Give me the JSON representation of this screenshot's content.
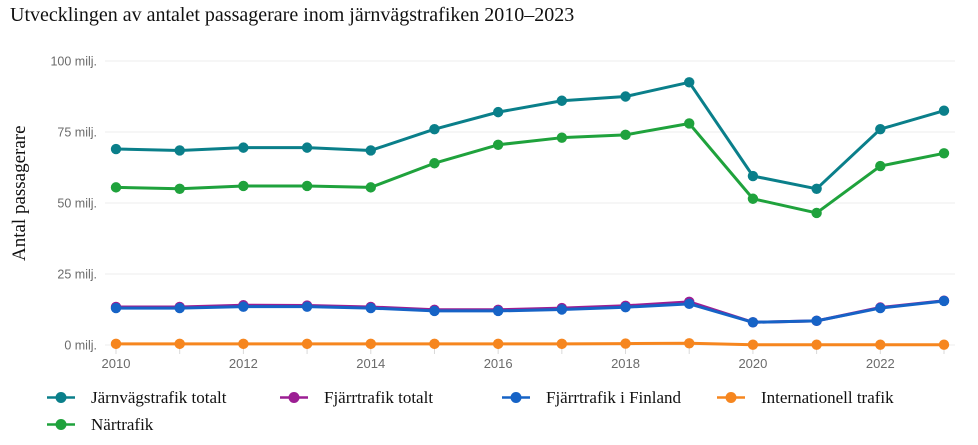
{
  "chart_data": {
    "type": "line",
    "title": "Utvecklingen av antalet passagerare inom järnvägstrafiken 2010–2023",
    "ylabel": "Antal passagerare",
    "xlabel": "",
    "x": [
      2010,
      2011,
      2012,
      2013,
      2014,
      2015,
      2016,
      2017,
      2018,
      2019,
      2020,
      2021,
      2022,
      2023
    ],
    "x_tick_labels": [
      "2010",
      "2012",
      "2014",
      "2016",
      "2018",
      "2020",
      "2022"
    ],
    "y_ticks": [
      {
        "value": 0,
        "label": "0 milj."
      },
      {
        "value": 25,
        "label": "25 milj."
      },
      {
        "value": 50,
        "label": "50 milj."
      },
      {
        "value": 75,
        "label": "75 milj."
      },
      {
        "value": 100,
        "label": "100 milj."
      }
    ],
    "ylim": [
      0,
      100
    ],
    "grid": "horizontal",
    "legend_position": "bottom",
    "legend_order": [
      0,
      2,
      3,
      4,
      1
    ],
    "series": [
      {
        "name": "Järnvägstrafik totalt",
        "color": "#0a7f8a",
        "values": [
          69,
          68.5,
          69.5,
          69.5,
          68.5,
          76,
          82,
          86,
          87.5,
          92.5,
          59.5,
          55,
          76,
          82.5
        ]
      },
      {
        "name": "Närtrafik",
        "color": "#1fa23c",
        "values": [
          55.5,
          55,
          56,
          56,
          55.5,
          64,
          70.5,
          73,
          74,
          78,
          51.5,
          46.5,
          63,
          67.5
        ]
      },
      {
        "name": "Fjärrtrafik totalt",
        "color": "#9c1e93",
        "values": [
          13.4,
          13.4,
          14,
          13.9,
          13.4,
          12.4,
          12.4,
          13,
          13.8,
          15.2,
          8,
          8.5,
          13.2,
          15.6
        ]
      },
      {
        "name": "Fjärrtrafik i Finland",
        "color": "#1663c6",
        "values": [
          13,
          13,
          13.5,
          13.5,
          13,
          12,
          12,
          12.5,
          13.3,
          14.5,
          8,
          8.5,
          13,
          15.5
        ]
      },
      {
        "name": "Internationell trafik",
        "color": "#f6861f",
        "values": [
          0.4,
          0.4,
          0.4,
          0.4,
          0.4,
          0.4,
          0.4,
          0.4,
          0.5,
          0.6,
          0.1,
          0.1,
          0.1,
          0.1
        ]
      }
    ],
    "colors": {
      "grid_line": "#ececec",
      "tick_label": "#6b6b6b",
      "axis_tick": "#d9d9d9"
    }
  }
}
